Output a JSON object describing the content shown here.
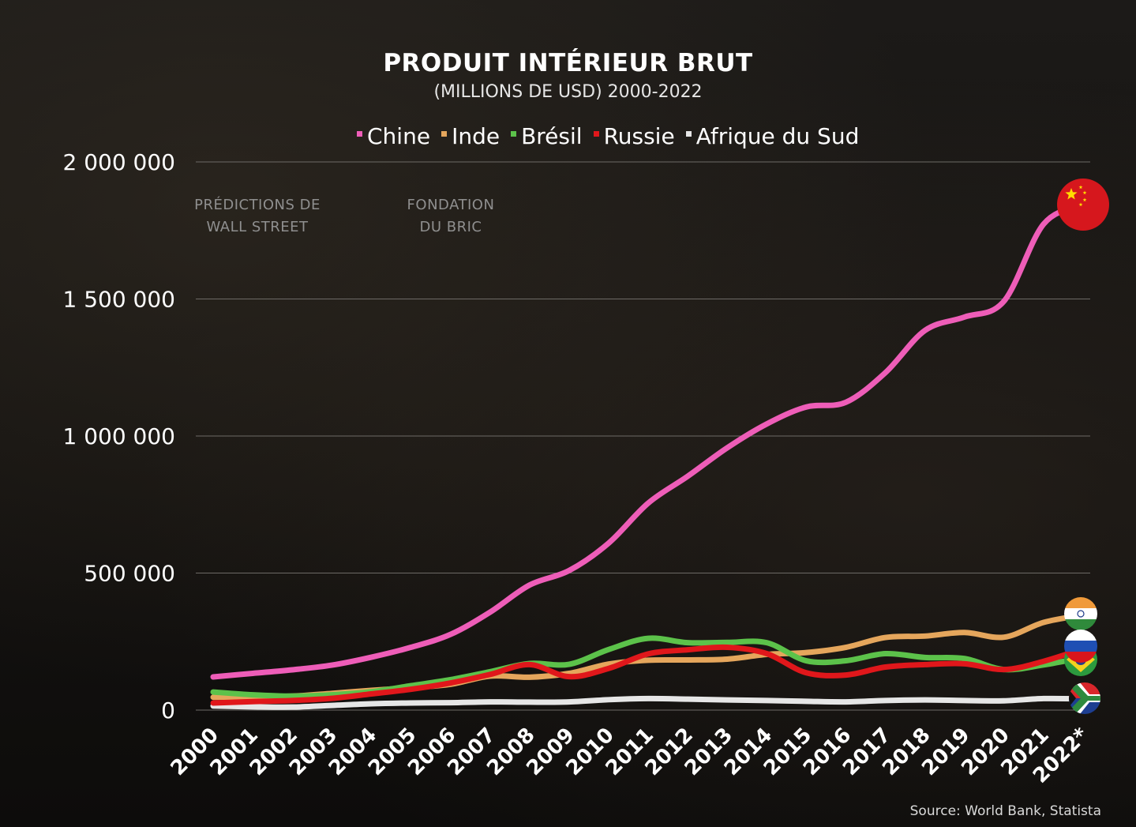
{
  "chart_data": {
    "type": "line",
    "title": "PRODUIT INTÉRIEUR BRUT",
    "subtitle": "(MILLIONS DE USD) 2000-2022",
    "source": "Source: World Bank, Statista",
    "ylim": [
      0,
      2000000
    ],
    "yticks": [
      0,
      500000,
      1000000,
      1500000,
      2000000
    ],
    "ytick_labels": [
      "0",
      "500 000",
      "1 000 000",
      "1 500 000",
      "2 000 000"
    ],
    "grid": true,
    "legend_position": "top",
    "x": [
      "2000",
      "2001",
      "2002",
      "2003",
      "2004",
      "2005",
      "2006",
      "2007",
      "2008",
      "2009",
      "2010",
      "2011",
      "2012",
      "2013",
      "2014",
      "2015",
      "2016",
      "2017",
      "2018",
      "2019",
      "2020",
      "2021",
      "2022*"
    ],
    "annotations": [
      {
        "text_line1": "PRÉDICTIONS DE",
        "text_line2": "WALL STREET",
        "x": "2001"
      },
      {
        "text_line1": "FONDATION",
        "text_line2": "DU BRIC",
        "x": "2006"
      }
    ],
    "series": [
      {
        "name": "Chine",
        "color": "#ee5db8",
        "flag": "china-flag-icon",
        "values": [
          121000,
          134000,
          147000,
          164000,
          193000,
          229000,
          276000,
          357000,
          456000,
          509000,
          609000,
          755000,
          853000,
          957000,
          1044000,
          1106000,
          1123000,
          1231000,
          1385000,
          1434000,
          1492000,
          1773000,
          1843000
        ]
      },
      {
        "name": "Inde",
        "color": "#e5a65c",
        "flag": "india-flag-icon",
        "values": [
          47000,
          48000,
          51000,
          61000,
          72000,
          82000,
          94000,
          124000,
          120000,
          134000,
          168000,
          182000,
          183000,
          186000,
          203000,
          210000,
          229000,
          265000,
          270000,
          283000,
          266000,
          320000,
          347000
        ]
      },
      {
        "name": "Brésil",
        "color": "#5cc24a",
        "flag": "brazil-flag-icon",
        "values": [
          66000,
          56000,
          51000,
          56000,
          67000,
          89000,
          111000,
          140000,
          170000,
          167000,
          221000,
          262000,
          246000,
          247000,
          246000,
          180000,
          180000,
          206000,
          192000,
          188000,
          148000,
          165000,
          192000
        ]
      },
      {
        "name": "Russie",
        "color": "#e0171b",
        "flag": "russia-flag-icon",
        "values": [
          26000,
          31000,
          35000,
          43000,
          59000,
          76000,
          99000,
          130000,
          166000,
          122000,
          152000,
          205000,
          220000,
          229000,
          206000,
          136000,
          128000,
          157000,
          166000,
          169000,
          148000,
          178000,
          224000
        ]
      },
      {
        "name": "Afrique du Sud",
        "color": "#e6e6e6",
        "flag": "south-africa-flag-icon",
        "values": [
          15000,
          12000,
          11000,
          17000,
          23000,
          26000,
          27000,
          30000,
          29000,
          30000,
          38000,
          42000,
          40000,
          37000,
          35000,
          32000,
          30000,
          35000,
          37000,
          35000,
          34000,
          42000,
          41000
        ]
      }
    ]
  }
}
